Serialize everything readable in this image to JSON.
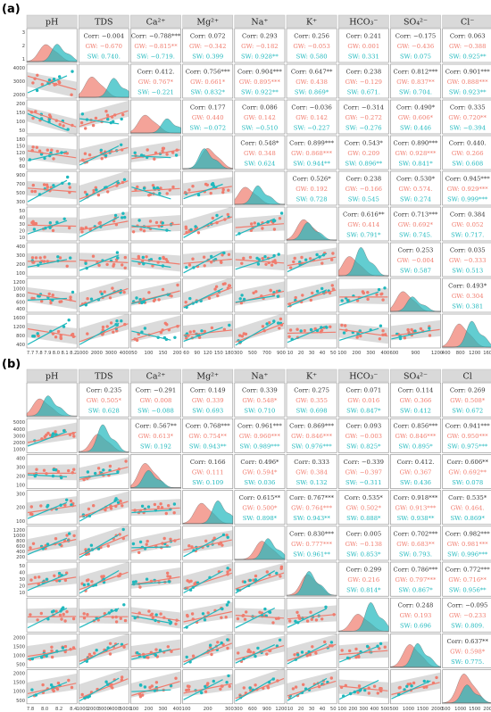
{
  "colors": {
    "gw": "#f07c6e",
    "sw": "#1fb8bd",
    "header_bg": "#d9d9d9",
    "ci_band": "#bdbdbd",
    "text": "#333333",
    "border": "#888888"
  },
  "chart_data": [
    {
      "type": "scatter",
      "panel_label": "(a)",
      "variables": [
        "pH",
        "TDS",
        "Ca2+",
        "Mg2+",
        "Na+",
        "K+",
        "HCO3-",
        "SO42-",
        "Cl-"
      ],
      "headers": [
        "pH",
        "TDS",
        "Ca²⁺",
        "Mg²⁺",
        "Na⁺",
        "K⁺",
        "HCO₃⁻",
        "SO₄²⁻",
        "Cl⁻"
      ],
      "y_ticks": [
        [
          "1",
          "2",
          "3"
        ],
        [
          "2000",
          "3000",
          "4000"
        ],
        [
          "50",
          "100",
          "150",
          "200"
        ],
        [
          "60",
          "90",
          "120",
          "150",
          "180"
        ],
        [
          "300",
          "500",
          "700",
          "900"
        ],
        [
          "10",
          "20",
          "30",
          "40",
          "50"
        ],
        [
          "100",
          "200",
          "300",
          "400"
        ],
        [
          "400",
          "600",
          "800",
          "1000",
          "1200"
        ],
        [
          "400",
          "800",
          "1200",
          "1600"
        ]
      ],
      "x_ticks": [
        [
          "7.7",
          "7.8",
          "7.9",
          "8.0",
          "8.1",
          "8.2"
        ],
        [
          "1000",
          "2000",
          "3000",
          "4000"
        ],
        [
          "50",
          "100",
          "150",
          "200"
        ],
        [
          "60",
          "90",
          "120",
          "150",
          "180"
        ],
        [
          "300",
          "500",
          "700",
          "900"
        ],
        [
          "10",
          "20",
          "30",
          "40",
          "50"
        ],
        [
          "100",
          "200",
          "300",
          "400"
        ],
        [
          "600",
          "900",
          "1200"
        ],
        [
          "400",
          "800",
          "1200",
          "1600"
        ]
      ],
      "correlations": [
        {
          "pair": [
            "pH",
            "TDS"
          ],
          "corr": "Corr: −0.004",
          "gw": "GW: −0.670",
          "sw": "SW: 0.740."
        },
        {
          "pair": [
            "pH",
            "Ca2+"
          ],
          "corr": "Corr: −0.788***",
          "gw": "GW: −0.815**",
          "sw": "SW: −0.719."
        },
        {
          "pair": [
            "pH",
            "Mg2+"
          ],
          "corr": "Corr: 0.072",
          "gw": "GW: −0.342",
          "sw": "SW: 0.399"
        },
        {
          "pair": [
            "pH",
            "Na+"
          ],
          "corr": "Corr: 0.293",
          "gw": "GW: −0.182",
          "sw": "SW: 0.928**"
        },
        {
          "pair": [
            "pH",
            "K+"
          ],
          "corr": "Corr: 0.256",
          "gw": "GW: −0.053",
          "sw": "SW: 0.580"
        },
        {
          "pair": [
            "pH",
            "HCO3-"
          ],
          "corr": "Corr: 0.241",
          "gw": "GW: 0.001",
          "sw": "SW: 0.331"
        },
        {
          "pair": [
            "pH",
            "SO42-"
          ],
          "corr": "Corr: −0.175",
          "gw": "GW: −0.436",
          "sw": "SW: 0.075"
        },
        {
          "pair": [
            "pH",
            "Cl-"
          ],
          "corr": "Corr: 0.063",
          "gw": "GW: −0.388",
          "sw": "SW: 0.925**"
        },
        {
          "pair": [
            "TDS",
            "Ca2+"
          ],
          "corr": "Corr: 0.412.",
          "gw": "GW: 0.767*",
          "sw": "SW: −0.221"
        },
        {
          "pair": [
            "TDS",
            "Mg2+"
          ],
          "corr": "Corr: 0.756***",
          "gw": "GW: 0.661*",
          "sw": "SW: 0.832*"
        },
        {
          "pair": [
            "TDS",
            "Na+"
          ],
          "corr": "Corr: 0.904***",
          "gw": "GW: 0.895***",
          "sw": "SW: 0.922**"
        },
        {
          "pair": [
            "TDS",
            "K+"
          ],
          "corr": "Corr: 0.647**",
          "gw": "GW: 0.438",
          "sw": "SW: 0.869*"
        },
        {
          "pair": [
            "TDS",
            "HCO3-"
          ],
          "corr": "Corr: 0.238",
          "gw": "GW: −0.129",
          "sw": "SW: 0.671."
        },
        {
          "pair": [
            "TDS",
            "SO42-"
          ],
          "corr": "Corr: 0.812***",
          "gw": "GW: 0.837**",
          "sw": "SW: 0.704."
        },
        {
          "pair": [
            "TDS",
            "Cl-"
          ],
          "corr": "Corr: 0.901***",
          "gw": "GW: 0.888***",
          "sw": "SW: 0.923**"
        },
        {
          "pair": [
            "Ca2+",
            "Mg2+"
          ],
          "corr": "Corr: 0.177",
          "gw": "GW: 0.440",
          "sw": "SW: −0.072"
        },
        {
          "pair": [
            "Ca2+",
            "Na+"
          ],
          "corr": "Corr: 0.086",
          "gw": "GW: 0.142",
          "sw": "SW: −0.510"
        },
        {
          "pair": [
            "Ca2+",
            "K+"
          ],
          "corr": "Corr: −0.036",
          "gw": "GW: 0.142",
          "sw": "SW: −0.227"
        },
        {
          "pair": [
            "Ca2+",
            "HCO3-"
          ],
          "corr": "Corr: −0.314",
          "gw": "GW: −0.272",
          "sw": "SW: −0.276"
        },
        {
          "pair": [
            "Ca2+",
            "SO42-"
          ],
          "corr": "Corr: 0.490*",
          "gw": "GW: 0.606*",
          "sw": "SW: 0.446"
        },
        {
          "pair": [
            "Ca2+",
            "Cl-"
          ],
          "corr": "Corr: 0.335",
          "gw": "GW: 0.720**",
          "sw": "SW: −0.394"
        },
        {
          "pair": [
            "Mg2+",
            "Na+"
          ],
          "corr": "Corr: 0.548*",
          "gw": "GW: 0.348",
          "sw": "SW: 0.624"
        },
        {
          "pair": [
            "Mg2+",
            "K+"
          ],
          "corr": "Corr: 0.899***",
          "gw": "GW: 0.868***",
          "sw": "SW: 0.944**"
        },
        {
          "pair": [
            "Mg2+",
            "HCO3-"
          ],
          "corr": "Corr: 0.543*",
          "gw": "GW: 0.209",
          "sw": "SW: 0.896**"
        },
        {
          "pair": [
            "Mg2+",
            "SO42-"
          ],
          "corr": "Corr: 0.890***",
          "gw": "GW: 0.928***",
          "sw": "SW: 0.841*"
        },
        {
          "pair": [
            "Mg2+",
            "Cl-"
          ],
          "corr": "Corr: 0.440.",
          "gw": "GW: 0.266",
          "sw": "SW: 0.608"
        },
        {
          "pair": [
            "Na+",
            "K+"
          ],
          "corr": "Corr: 0.526*",
          "gw": "GW: 0.192",
          "sw": "SW: 0.728"
        },
        {
          "pair": [
            "Na+",
            "HCO3-"
          ],
          "corr": "Corr: 0.238",
          "gw": "GW: −0.166",
          "sw": "SW: 0.545"
        },
        {
          "pair": [
            "Na+",
            "SO42-"
          ],
          "corr": "Corr: 0.530*",
          "gw": "GW: 0.574.",
          "sw": "SW: 0.274"
        },
        {
          "pair": [
            "Na+",
            "Cl-"
          ],
          "corr": "Corr: 0.945***",
          "gw": "GW: 0.929***",
          "sw": "SW: 0.999***"
        },
        {
          "pair": [
            "K+",
            "HCO3-"
          ],
          "corr": "Corr: 0.616**",
          "gw": "GW: 0.414",
          "sw": "SW: 0.791*"
        },
        {
          "pair": [
            "K+",
            "SO42-"
          ],
          "corr": "Corr: 0.713***",
          "gw": "GW: 0.692*",
          "sw": "SW: 0.745."
        },
        {
          "pair": [
            "K+",
            "Cl-"
          ],
          "corr": "Corr: 0.384",
          "gw": "GW: 0.052",
          "sw": "SW: 0.717."
        },
        {
          "pair": [
            "HCO3-",
            "SO42-"
          ],
          "corr": "Corr: 0.253",
          "gw": "GW: −0.004",
          "sw": "SW: 0.587"
        },
        {
          "pair": [
            "HCO3-",
            "Cl-"
          ],
          "corr": "Corr: 0.035",
          "gw": "GW: −0.333",
          "sw": "SW: 0.513"
        },
        {
          "pair": [
            "SO42-",
            "Cl-"
          ],
          "corr": "Corr: 0.493*",
          "gw": "GW: 0.304",
          "sw": "SW: 0.381"
        }
      ]
    },
    {
      "type": "scatter",
      "panel_label": "(b)",
      "variables": [
        "pH",
        "TDS",
        "Ca2+",
        "Mg2+",
        "Na+",
        "K+",
        "HCO3-",
        "SO42-",
        "Cl-"
      ],
      "headers": [
        "pH",
        "TDS",
        "Ca²⁺",
        "Mg²⁺",
        "Na⁺",
        "K⁺",
        "HCO₃⁻",
        "SO₄²⁻",
        "Cl"
      ],
      "y_ticks": [
        [],
        [
          "1000",
          "2000",
          "3000",
          "4000",
          "5000"
        ],
        [
          "100",
          "200",
          "300",
          "400"
        ],
        [
          "100",
          "200",
          "300"
        ],
        [
          "200",
          "400",
          "600",
          "800",
          "1000",
          "1200"
        ],
        [
          "10",
          "20",
          "30",
          "40",
          "50"
        ],
        [],
        [
          "500",
          "1000",
          "1500",
          "2000"
        ],
        [
          "500",
          "1000",
          "1500",
          "2000"
        ]
      ],
      "x_ticks": [
        [
          "7.8",
          "8.0",
          "8.2",
          "8.4"
        ],
        [
          "1000",
          "2000",
          "3000",
          "4000",
          "5000"
        ],
        [
          "100",
          "200",
          "300",
          "400"
        ],
        [
          "100",
          "200",
          "300"
        ],
        [
          "300",
          "600",
          "900",
          "1200"
        ],
        [
          "10",
          "20",
          "30",
          "40",
          "50"
        ],
        [
          "100",
          "200",
          "300",
          "400",
          "500"
        ],
        [
          "500",
          "1000",
          "1500",
          "2000"
        ],
        [
          "500",
          "1000",
          "1500",
          "2000"
        ]
      ],
      "correlations": [
        {
          "pair": [
            "pH",
            "TDS"
          ],
          "corr": "Corr: 0.235",
          "gw": "GW: 0.505*",
          "sw": "SW: 0.628"
        },
        {
          "pair": [
            "pH",
            "Ca2+"
          ],
          "corr": "Corr: −0.291",
          "gw": "GW: 0.008",
          "sw": "SW: −0.088"
        },
        {
          "pair": [
            "pH",
            "Mg2+"
          ],
          "corr": "Corr: 0.149",
          "gw": "GW: 0.339",
          "sw": "SW: 0.693"
        },
        {
          "pair": [
            "pH",
            "Na+"
          ],
          "corr": "Corr: 0.339",
          "gw": "GW: 0.548*",
          "sw": "SW: 0.710"
        },
        {
          "pair": [
            "pH",
            "K+"
          ],
          "corr": "Corr: 0.275",
          "gw": "GW: 0.355",
          "sw": "SW: 0.698"
        },
        {
          "pair": [
            "pH",
            "HCO3-"
          ],
          "corr": "Corr: 0.071",
          "gw": "GW: 0.016",
          "sw": "SW: 0.847*"
        },
        {
          "pair": [
            "pH",
            "SO42-"
          ],
          "corr": "Corr: 0.114",
          "gw": "GW: 0.366",
          "sw": "SW: 0.412"
        },
        {
          "pair": [
            "pH",
            "Cl-"
          ],
          "corr": "Corr: 0.269",
          "gw": "GW: 0.508*",
          "sw": "SW: 0.672"
        },
        {
          "pair": [
            "TDS",
            "Ca2+"
          ],
          "corr": "Corr: 0.567**",
          "gw": "GW: 0.613*",
          "sw": "SW: 0.192"
        },
        {
          "pair": [
            "TDS",
            "Mg2+"
          ],
          "corr": "Corr: 0.768***",
          "gw": "GW: 0.754**",
          "sw": "SW: 0.943**"
        },
        {
          "pair": [
            "TDS",
            "Na+"
          ],
          "corr": "Corr: 0.961***",
          "gw": "GW: 0.960***",
          "sw": "SW: 0.989***"
        },
        {
          "pair": [
            "TDS",
            "K+"
          ],
          "corr": "Corr: 0.869***",
          "gw": "GW: 0.846***",
          "sw": "SW: 0.976***"
        },
        {
          "pair": [
            "TDS",
            "HCO3-"
          ],
          "corr": "Corr: 0.093",
          "gw": "GW: −0.003",
          "sw": "SW: 0.825*"
        },
        {
          "pair": [
            "TDS",
            "SO42-"
          ],
          "corr": "Corr: 0.856***",
          "gw": "GW: 0.846***",
          "sw": "SW: 0.895*"
        },
        {
          "pair": [
            "TDS",
            "Cl-"
          ],
          "corr": "Corr: 0.941***",
          "gw": "GW: 0.950***",
          "sw": "SW: 0.975***"
        },
        {
          "pair": [
            "Ca2+",
            "Mg2+"
          ],
          "corr": "Corr: 0.166",
          "gw": "GW: 0.111",
          "sw": "SW: 0.109"
        },
        {
          "pair": [
            "Ca2+",
            "Na+"
          ],
          "corr": "Corr: 0.496*",
          "gw": "GW: 0.594*",
          "sw": "SW: 0.036"
        },
        {
          "pair": [
            "Ca2+",
            "K+"
          ],
          "corr": "Corr: 0.333",
          "gw": "GW: 0.384",
          "sw": "SW: 0.132"
        },
        {
          "pair": [
            "Ca2+",
            "HCO3-"
          ],
          "corr": "Corr: −0.339",
          "gw": "GW: −0.397",
          "sw": "SW: −0.311"
        },
        {
          "pair": [
            "Ca2+",
            "SO42-"
          ],
          "corr": "Corr: 0.412.",
          "gw": "GW: 0.367",
          "sw": "SW: 0.436"
        },
        {
          "pair": [
            "Ca2+",
            "Cl-"
          ],
          "corr": "Corr: 0.606**",
          "gw": "GW: 0.692**",
          "sw": "SW: 0.078"
        },
        {
          "pair": [
            "Mg2+",
            "Na+"
          ],
          "corr": "Corr: 0.615**",
          "gw": "GW: 0.500*",
          "sw": "SW: 0.898*"
        },
        {
          "pair": [
            "Mg2+",
            "K+"
          ],
          "corr": "Corr: 0.767***",
          "gw": "GW: 0.764***",
          "sw": "SW: 0.943**"
        },
        {
          "pair": [
            "Mg2+",
            "HCO3-"
          ],
          "corr": "Corr: 0.535*",
          "gw": "GW: 0.502*",
          "sw": "SW: 0.888*"
        },
        {
          "pair": [
            "Mg2+",
            "SO42-"
          ],
          "corr": "Corr: 0.918***",
          "gw": "GW: 0.913***",
          "sw": "SW: 0.938**"
        },
        {
          "pair": [
            "Mg2+",
            "Cl-"
          ],
          "corr": "Corr: 0.535*",
          "gw": "GW: 0.464.",
          "sw": "SW: 0.869*"
        },
        {
          "pair": [
            "Na+",
            "K+"
          ],
          "corr": "Corr: 0.830***",
          "gw": "GW: 0.777***",
          "sw": "SW: 0.961**"
        },
        {
          "pair": [
            "Na+",
            "HCO3-"
          ],
          "corr": "Corr: 0.005",
          "gw": "GW: −0.138",
          "sw": "SW: 0.853*"
        },
        {
          "pair": [
            "Na+",
            "SO42-"
          ],
          "corr": "Corr: 0.702***",
          "gw": "GW: 0.683**",
          "sw": "SW: 0.793."
        },
        {
          "pair": [
            "Na+",
            "Cl-"
          ],
          "corr": "Corr: 0.982***",
          "gw": "GW: 0.981***",
          "sw": "SW: 0.996***"
        },
        {
          "pair": [
            "K+",
            "HCO3-"
          ],
          "corr": "Corr: 0.299",
          "gw": "GW: 0.216",
          "sw": "SW: 0.814*"
        },
        {
          "pair": [
            "K+",
            "SO42-"
          ],
          "corr": "Corr: 0.786***",
          "gw": "GW: 0.797***",
          "sw": "SW: 0.867*"
        },
        {
          "pair": [
            "K+",
            "Cl-"
          ],
          "corr": "Corr: 0.772***",
          "gw": "GW: 0.716**",
          "sw": "SW: 0.956**"
        },
        {
          "pair": [
            "HCO3-",
            "SO42-"
          ],
          "corr": "Corr: 0.248",
          "gw": "GW: 0.193",
          "sw": "SW: 0.696"
        },
        {
          "pair": [
            "HCO3-",
            "Cl-"
          ],
          "corr": "Corr: −0.095",
          "gw": "GW: −0.233",
          "sw": "SW: 0.809."
        },
        {
          "pair": [
            "SO42-",
            "Cl-"
          ],
          "corr": "Corr: 0.637**",
          "gw": "GW: 0.598*",
          "sw": "SW: 0.775."
        }
      ]
    }
  ]
}
